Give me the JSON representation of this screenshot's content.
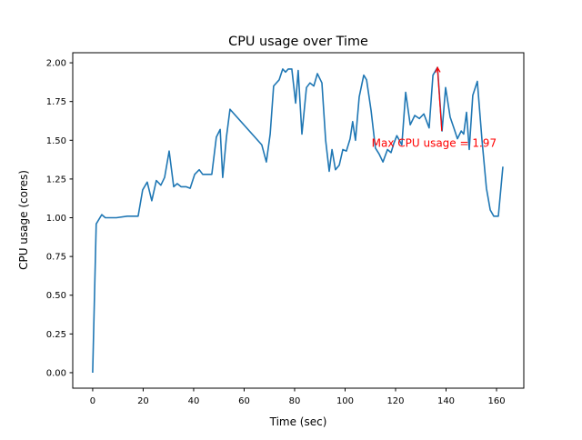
{
  "chart_data": {
    "type": "line",
    "title": "CPU usage over Time",
    "xlabel": "Time (sec)",
    "ylabel": "CPU usage (cores)",
    "xlim": [
      -7.9,
      170.8
    ],
    "ylim": [
      -0.1,
      2.065
    ],
    "xticks": [
      0,
      20,
      40,
      60,
      80,
      100,
      120,
      140,
      160
    ],
    "xtick_labels": [
      "0",
      "20",
      "40",
      "60",
      "80",
      "100",
      "120",
      "140",
      "160"
    ],
    "yticks": [
      0,
      0.25,
      0.5,
      0.75,
      1.0,
      1.25,
      1.5,
      1.75,
      2.0
    ],
    "ytick_labels": [
      "0.00",
      "0.25",
      "0.50",
      "0.75",
      "1.00",
      "1.25",
      "1.50",
      "1.75",
      "2.00"
    ],
    "grid": false,
    "series": [
      {
        "name": "CPU usage",
        "color": "#1f77b4",
        "x": [
          0,
          1.4,
          3.6,
          5,
          9.4,
          13.7,
          18,
          19.8,
          21.6,
          23.4,
          25.2,
          27,
          28.5,
          30.3,
          32.1,
          33.5,
          35,
          37,
          38.6,
          40.4,
          42.2,
          43.6,
          47.2,
          49,
          50.5,
          51.5,
          53,
          54.4,
          67,
          68.8,
          70.3,
          71.7,
          73.9,
          75.3,
          76.4,
          77.5,
          78.9,
          80.4,
          81.4,
          82.9,
          84.7,
          86.1,
          87.6,
          89,
          90.8,
          92.3,
          93.7,
          94.8,
          96.2,
          97.7,
          99.1,
          100.5,
          102,
          103,
          104.1,
          105.6,
          107.4,
          108.5,
          110.3,
          112,
          113.5,
          115,
          116.8,
          118.2,
          119.3,
          120.5,
          122.5,
          124,
          125.8,
          127.6,
          129.4,
          131.2,
          133.3,
          134.8,
          136.6,
          138.4,
          139.8,
          141.6,
          143.1,
          144.5,
          146,
          147,
          148.1,
          149.2,
          150.6,
          152.4,
          154.2,
          156,
          157.5,
          158.9,
          160.7,
          162.5
        ],
        "y": [
          0,
          0.96,
          1.02,
          1.0,
          1.0,
          1.01,
          1.01,
          1.18,
          1.23,
          1.11,
          1.24,
          1.21,
          1.26,
          1.43,
          1.2,
          1.22,
          1.2,
          1.2,
          1.19,
          1.28,
          1.31,
          1.28,
          1.28,
          1.52,
          1.57,
          1.26,
          1.52,
          1.7,
          1.47,
          1.36,
          1.54,
          1.85,
          1.89,
          1.96,
          1.94,
          1.96,
          1.96,
          1.74,
          1.95,
          1.54,
          1.84,
          1.87,
          1.85,
          1.93,
          1.87,
          1.5,
          1.3,
          1.44,
          1.31,
          1.34,
          1.44,
          1.43,
          1.51,
          1.62,
          1.5,
          1.78,
          1.92,
          1.89,
          1.69,
          1.45,
          1.41,
          1.36,
          1.44,
          1.42,
          1.48,
          1.53,
          1.47,
          1.81,
          1.6,
          1.66,
          1.64,
          1.67,
          1.58,
          1.92,
          1.97,
          1.56,
          1.84,
          1.65,
          1.58,
          1.51,
          1.56,
          1.54,
          1.68,
          1.44,
          1.79,
          1.88,
          1.51,
          1.19,
          1.05,
          1.01,
          1.01,
          1.33
        ]
      }
    ],
    "annotation": {
      "text": "Max CPU usage = 1.97",
      "color": "#ff0000",
      "point": [
        136.6,
        1.97
      ],
      "text_pos": [
        110.5,
        1.48
      ],
      "arrow_tail": [
        138.3,
        1.56
      ]
    }
  }
}
